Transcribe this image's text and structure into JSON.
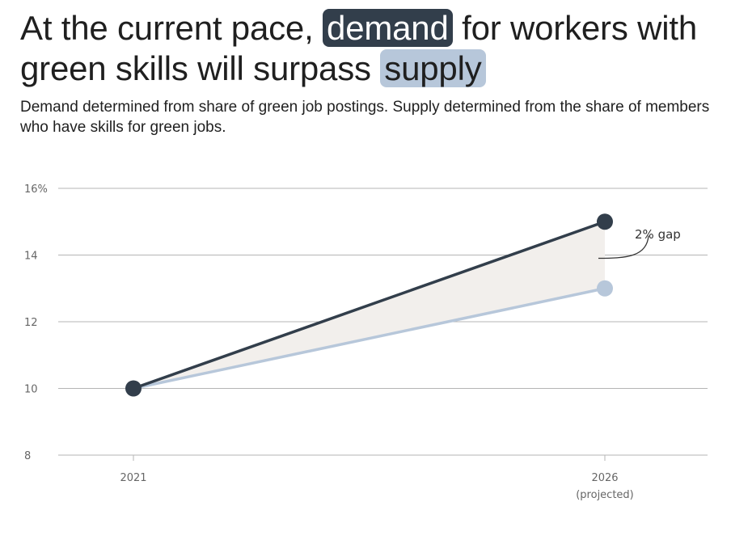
{
  "title": {
    "part1": "At the current pace,",
    "highlight1": "demand",
    "part2": "for workers with green skills will surpass",
    "highlight2": "supply"
  },
  "subtitle": "Demand determined from share of green job postings. Supply determined from the share of members who have skills for green jobs.",
  "colors": {
    "demand": "#323e4b",
    "supply": "#b7c7da",
    "gap_fill": "#f2efec",
    "grid": "#b5b5b5",
    "text": "#1f1f1f"
  },
  "chart_data": {
    "type": "line",
    "categories": [
      "2021",
      "2026"
    ],
    "category_sublabels": [
      "",
      "(projected)"
    ],
    "series": [
      {
        "key": "demand",
        "values": [
          10,
          15
        ]
      },
      {
        "key": "supply",
        "values": [
          10,
          13
        ]
      }
    ],
    "ylim": [
      8,
      16
    ],
    "yticks": [
      8,
      10,
      12,
      14,
      16
    ],
    "ytick_labels": [
      "8",
      "10",
      "12",
      "14",
      "16%"
    ],
    "grid": true,
    "annotation": {
      "text": "2% gap",
      "category": "2026"
    }
  }
}
